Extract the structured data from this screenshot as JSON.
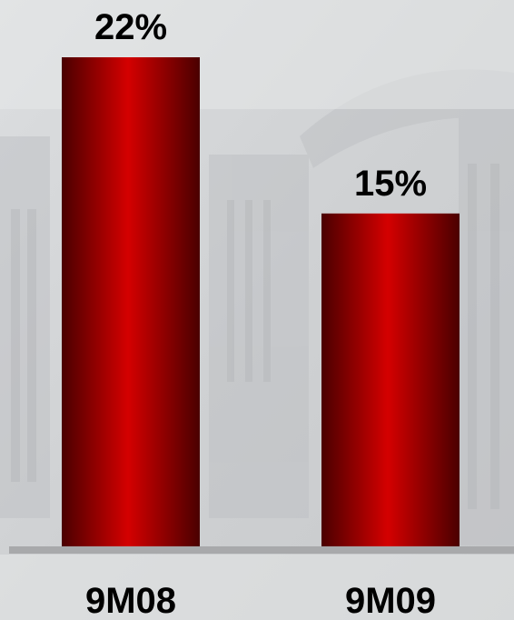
{
  "chart_data": {
    "type": "bar",
    "categories": [
      "9M08",
      "9M09"
    ],
    "values": [
      22,
      15
    ],
    "value_labels": [
      "22%",
      "15%"
    ],
    "title": "",
    "xlabel": "",
    "ylabel": "",
    "ylim": [
      0,
      22
    ],
    "grid": false,
    "legend": "none"
  },
  "colors": {
    "bar_dark": "#4a0000",
    "bar_mid": "#d40000",
    "baseline": "#a8a9ab",
    "background": "#d3d5d7"
  }
}
